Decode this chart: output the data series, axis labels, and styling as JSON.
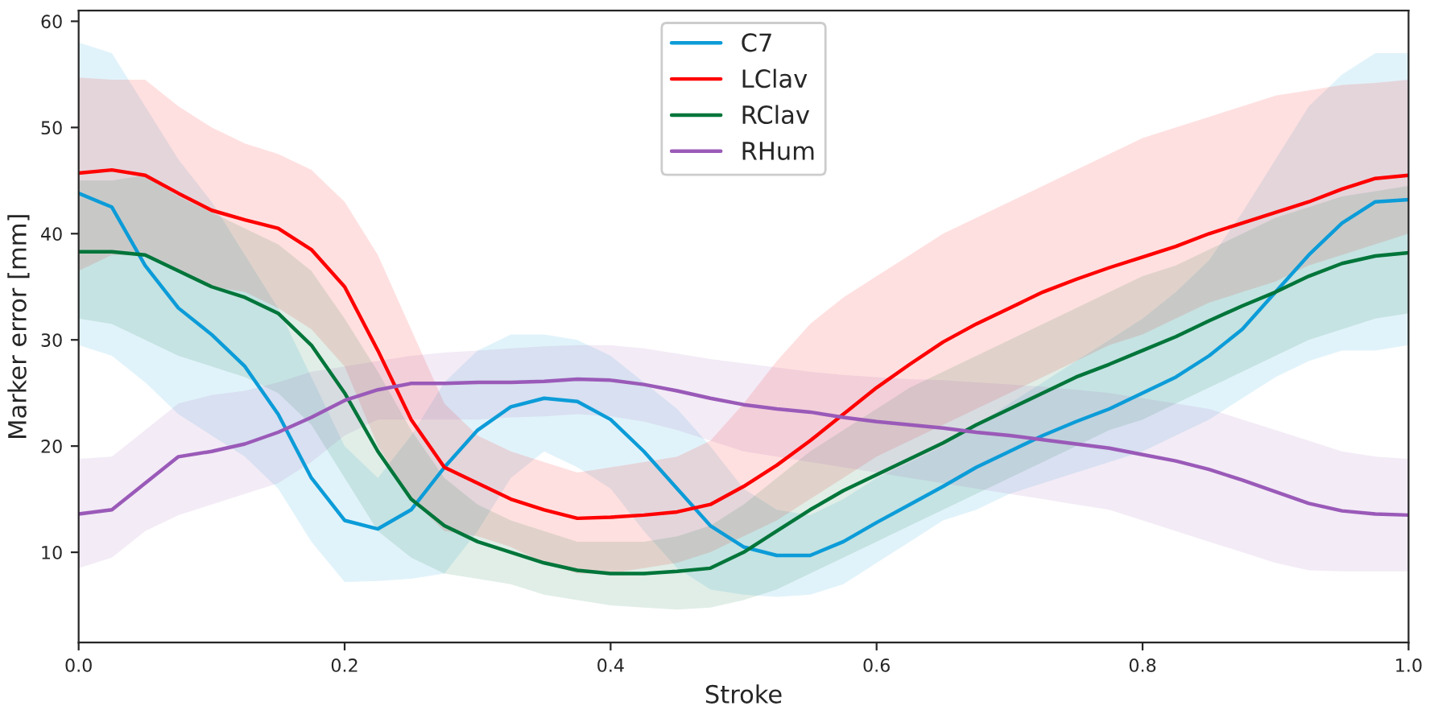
{
  "chart_data": {
    "type": "line",
    "xlabel": "Stroke",
    "ylabel": "Marker error [mm]",
    "x": [
      0,
      0.025,
      0.05,
      0.075,
      0.1,
      0.125,
      0.15,
      0.175,
      0.2,
      0.225,
      0.25,
      0.275,
      0.3,
      0.325,
      0.35,
      0.375,
      0.4,
      0.425,
      0.45,
      0.475,
      0.5,
      0.525,
      0.55,
      0.575,
      0.6,
      0.625,
      0.65,
      0.675,
      0.7,
      0.725,
      0.75,
      0.775,
      0.8,
      0.825,
      0.85,
      0.875,
      0.9,
      0.925,
      0.95,
      0.975,
      1.0
    ],
    "series": [
      {
        "name": "C7",
        "color": "#0c9cd8",
        "values": [
          43.8,
          42.5,
          37,
          33,
          30.5,
          27.5,
          23,
          17,
          13,
          12.2,
          14,
          18,
          21.5,
          23.7,
          24.5,
          24.2,
          22.5,
          19.5,
          16,
          12.5,
          10.5,
          9.7,
          9.7,
          11,
          12.8,
          14.5,
          16.2,
          18,
          19.5,
          21,
          22.3,
          23.5,
          25,
          26.5,
          28.5,
          31,
          34.5,
          38,
          41,
          43,
          43.2
        ],
        "lower": [
          29.5,
          28.5,
          26,
          23,
          21,
          19,
          16,
          11,
          7.2,
          7.3,
          7.5,
          8,
          12,
          17,
          19.5,
          18,
          16,
          12,
          8.5,
          6.5,
          6,
          5.8,
          6,
          7,
          9,
          11,
          13,
          14,
          15.5,
          16.5,
          17.5,
          18.5,
          19.5,
          21,
          22.5,
          24.5,
          26.5,
          28,
          29,
          29,
          29.5
        ],
        "upper": [
          58,
          57,
          52,
          47,
          43,
          38,
          33,
          26.5,
          20,
          17,
          21,
          26,
          29,
          30.5,
          30.5,
          30,
          28.5,
          26,
          23.5,
          20,
          16,
          14,
          13.5,
          15,
          17,
          18.5,
          20,
          22,
          24,
          26,
          28,
          30,
          32,
          34.5,
          37.5,
          42,
          47,
          52,
          55,
          57,
          57
        ]
      },
      {
        "name": "LClav",
        "color": "#ff0000",
        "values": [
          45.7,
          46,
          45.5,
          43.8,
          42.2,
          41.3,
          40.5,
          38.5,
          35,
          29,
          22.5,
          18,
          16.5,
          15,
          14,
          13.2,
          13.3,
          13.5,
          13.8,
          14.5,
          16.2,
          18.2,
          20.5,
          23,
          25.5,
          27.7,
          29.8,
          31.5,
          33,
          34.5,
          35.7,
          36.8,
          37.8,
          38.8,
          40,
          41,
          42,
          43,
          44.2,
          45.2,
          45.5
        ],
        "lower": [
          36.5,
          38,
          38,
          36.5,
          35,
          34.5,
          33,
          31,
          27.5,
          20,
          15,
          12,
          11.5,
          10.5,
          9,
          8,
          8,
          8.5,
          9,
          10,
          11.5,
          13,
          15,
          17,
          19,
          20.5,
          22,
          23.5,
          25,
          26.5,
          28,
          29.5,
          30.5,
          32,
          33.5,
          34.5,
          35.5,
          37,
          38,
          39,
          40
        ],
        "upper": [
          54.7,
          54.5,
          54.5,
          52,
          50,
          48.5,
          47.5,
          46,
          43,
          38,
          31,
          24,
          21,
          19.5,
          18.5,
          17.5,
          18,
          18.5,
          19,
          20.5,
          24,
          28,
          31.5,
          34,
          36,
          38,
          40,
          41.5,
          43,
          44.5,
          46,
          47.5,
          49,
          50,
          51,
          52,
          53,
          53.5,
          54,
          54.2,
          54.5
        ]
      },
      {
        "name": "RClav",
        "color": "#00753a",
        "values": [
          38.3,
          38.3,
          38,
          36.5,
          35,
          34,
          32.5,
          29.5,
          25,
          19.5,
          15,
          12.5,
          11,
          10,
          9,
          8.3,
          8,
          8,
          8.2,
          8.5,
          10,
          12,
          14,
          15.8,
          17.3,
          18.8,
          20.3,
          22,
          23.5,
          25,
          26.5,
          27.7,
          29,
          30.3,
          31.8,
          33.2,
          34.5,
          36,
          37.2,
          37.9,
          38.2
        ],
        "lower": [
          32,
          31.5,
          30,
          28.5,
          27.5,
          26.5,
          25,
          22,
          17,
          12,
          9.5,
          8,
          7.5,
          7,
          6,
          5.5,
          5,
          4.8,
          4.6,
          4.8,
          5.5,
          6.5,
          8,
          9.5,
          11,
          12.5,
          14,
          15.5,
          17,
          18.5,
          20,
          21.5,
          22.5,
          24,
          25.5,
          27,
          28.5,
          30,
          31,
          32,
          32.5
        ],
        "upper": [
          45,
          45,
          45.5,
          43.5,
          42,
          40.5,
          39,
          36.5,
          32,
          27,
          21.5,
          17,
          14.5,
          13,
          12,
          11,
          11,
          11,
          11.5,
          12.5,
          14.5,
          17,
          19.5,
          21.5,
          23.5,
          25.5,
          27,
          28.5,
          30,
          31.5,
          33,
          34.5,
          36,
          37,
          38.5,
          40,
          41.5,
          42.5,
          43.5,
          44,
          44.5
        ]
      },
      {
        "name": "RHum",
        "color": "#9a5ab8",
        "values": [
          13.6,
          14,
          16.5,
          19,
          19.5,
          20.2,
          21.3,
          22.7,
          24.3,
          25.3,
          25.9,
          25.9,
          26,
          26,
          26.1,
          26.3,
          26.2,
          25.8,
          25.2,
          24.5,
          23.9,
          23.5,
          23.2,
          22.7,
          22.3,
          22,
          21.7,
          21.3,
          21,
          20.6,
          20.2,
          19.8,
          19.2,
          18.6,
          17.8,
          16.8,
          15.7,
          14.6,
          13.9,
          13.6,
          13.5
        ],
        "lower": [
          8.5,
          9.5,
          12,
          13.5,
          14.5,
          15.5,
          16.5,
          18.5,
          21,
          22.5,
          22.5,
          22.5,
          22.5,
          22.7,
          22.8,
          23,
          22.8,
          22.3,
          21.5,
          20.5,
          19.5,
          19,
          18.5,
          18,
          17.5,
          17,
          16.5,
          16,
          15.5,
          15,
          14.5,
          14,
          13,
          12,
          11,
          10,
          9,
          8.3,
          8.2,
          8.2,
          8.2
        ],
        "upper": [
          18.8,
          19,
          21.5,
          24,
          24.8,
          25.2,
          26,
          27,
          27.5,
          28,
          28.5,
          28.8,
          29,
          29.2,
          29.4,
          29.5,
          29.5,
          29.2,
          28.7,
          28.2,
          27.8,
          27.4,
          27,
          26.7,
          26.5,
          26.3,
          26.2,
          26,
          25.8,
          25.6,
          25.3,
          25,
          24.5,
          24,
          23.5,
          22.5,
          21.5,
          20.5,
          19.5,
          19,
          18.8
        ]
      }
    ],
    "xlim": [
      0,
      1
    ],
    "xticks": [
      {
        "value": 0,
        "label": "0.0"
      },
      0.2,
      0.4,
      0.6,
      0.8,
      {
        "value": 1,
        "label": "1.0"
      }
    ],
    "ylim": [
      1.5,
      61
    ],
    "yticks": [
      10,
      20,
      30,
      40,
      50,
      60
    ],
    "grid": false,
    "legend": "top"
  }
}
